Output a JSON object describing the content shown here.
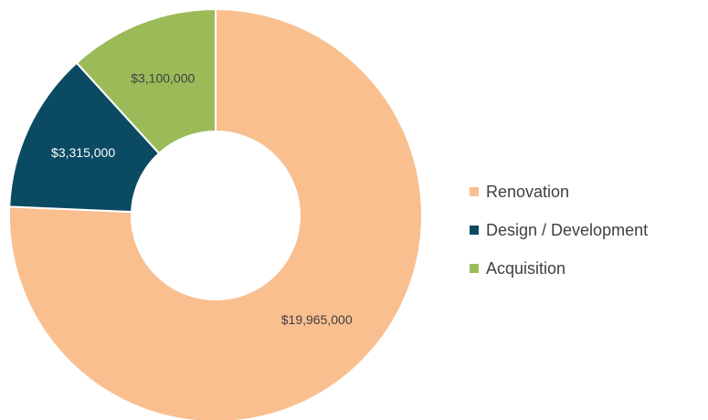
{
  "chart_data": {
    "type": "donut",
    "categories": [
      "Renovation",
      "Design / Development",
      "Acquisition"
    ],
    "values": [
      19965000,
      3315000,
      3100000
    ],
    "value_labels": [
      "$19,965,000",
      "$3,315,000",
      "$3,100,000"
    ],
    "colors": [
      "#f9bf8f",
      "#0b4a63",
      "#9bbb59"
    ],
    "legend": "right"
  }
}
